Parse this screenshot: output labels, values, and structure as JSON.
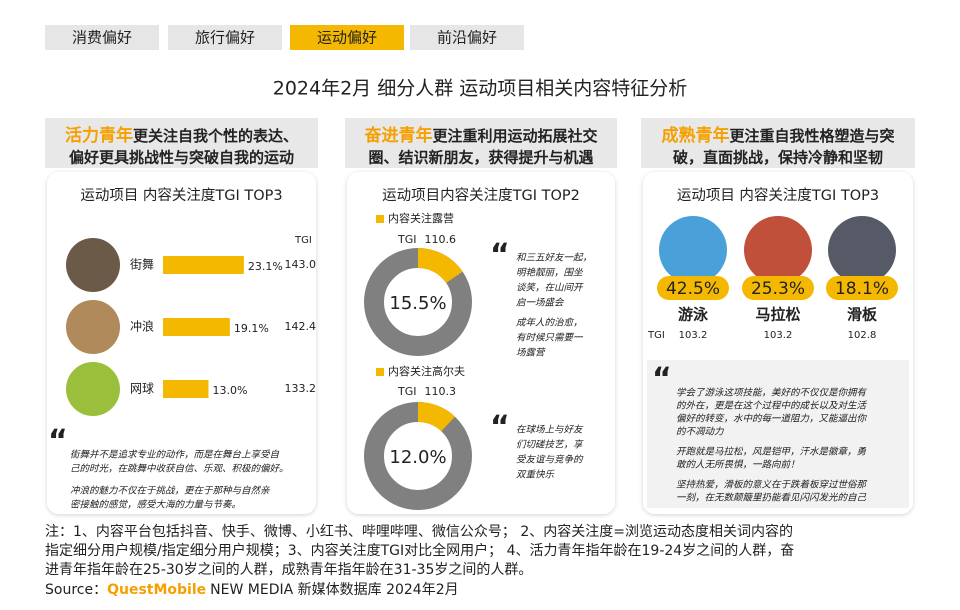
{
  "tabs": [
    "消费偏好",
    "旅行偏好",
    "运动偏好",
    "前沿偏好"
  ],
  "active_tab": 2,
  "title": "2024年2月 细分人群 运动项目相关内容特征分析",
  "panels": [
    {
      "highlight": "活力青年",
      "header": [
        "更关注自我个性的表达、",
        "偏好更具挑战性与突破自我的运动"
      ],
      "chart_title": "运动项目 内容关注度TGI TOP3",
      "tgi_label": "TGI",
      "items": [
        {
          "label": "街舞",
          "value": 23.1,
          "value_label": "23.1%",
          "tgi": {
            "value": 143.0,
            "label": "143.0"
          }
        },
        {
          "label": "冲浪",
          "value": 19.1,
          "value_label": "19.1%",
          "tgi": 142.4
        },
        {
          "label": "网球",
          "value": 13.0,
          "value_label": "13.0%",
          "tgi": 133.2
        }
      ],
      "quote": [
        "街舞并不是追求专业的动作，而是在舞台上享受自",
        "己的时光，在跳舞中收获自信、乐观、积极的偏好。",
        "冲浪的魅力不仅在于挑战，更在于那种与自然亲",
        "密接触的感觉，感受大海的力量与节奏。"
      ]
    },
    {
      "highlight": "奋进青年",
      "header": [
        "更注重利用运动拓展社交",
        "圈、结识新朋友，获得提升与机遇"
      ],
      "chart_title": "运动项目内容关注度TGI TOP2",
      "tgi_label": "TGI",
      "items": [
        {
          "label": "内容关注露营",
          "value": 15.5,
          "value_label": "15.5%",
          "tgi": 110.6,
          "quote": [
            "和三五好友一起，",
            "明艳靓丽，围坐",
            "谈笑，在山间开",
            "启一场盛会",
            "成年人的治愈，",
            "有时候只需要一",
            "场露营"
          ]
        },
        {
          "label": "内容关注高尔夫",
          "value": 12.0,
          "value_label": "12.0%",
          "tgi": 110.3,
          "quote": [
            "在球场上与好友",
            "们切磋技艺，享",
            "受友谊与竞争的",
            "双重快乐"
          ]
        }
      ]
    },
    {
      "highlight": "成熟青年",
      "header": [
        "更注重自我性格塑造与突",
        "破，直面挑战，保持冷静和坚韧"
      ],
      "chart_title": "运动项目 内容关注度TGI TOP3",
      "tgi_label": "TGI",
      "items": [
        {
          "label": "游泳",
          "value": 42.5,
          "value_label": "42.5%",
          "tgi": 103.2
        },
        {
          "label": "马拉松",
          "value": 25.3,
          "value_label": "25.3%",
          "tgi": 103.2
        },
        {
          "label": "滑板",
          "value": 18.1,
          "value_label": "18.1%",
          "tgi": 102.8
        }
      ],
      "quote": [
        "学会了游泳这项技能，美好的不仅仅是你拥有",
        "的外在，更是在这个过程中的成长以及对生活",
        "偏好的转变，水中的每一道阻力，又能逼出你",
        "的不凋动力",
        "开跑就是马拉松，风是铠甲，汗水是徽章，勇",
        "敢的人无所畏惧，一路向前！",
        "坚持热爱，滑板的意义在于跌着板穿过世俗那",
        "一刻，在无数颠簸里扔能看见闪闪发光的自己"
      ]
    }
  ],
  "notes": [
    "注：1、内容平台包括抖音、快手、微博、小红书、哔哩哔哩、微信公众号；  2、内容关注度=浏览运动态度相关词内容的",
    "指定细分用户规模/指定细分用户规模；3、内容关注度TGI对比全网用户；  4、活力青年指年龄在19-24岁之间的人群，奋",
    "进青年指年龄在25-30岁之间的人群，成熟青年指年龄在31-35岁之间的人群。"
  ],
  "source": {
    "label": "Source：",
    "brand": "QuestMobile",
    "rest": "NEW MEDIA  新媒体数据库 2024年2月"
  }
}
